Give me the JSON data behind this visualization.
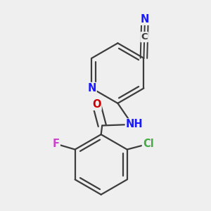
{
  "background_color": "#efefef",
  "atom_colors": {
    "C": "#3d3d3d",
    "N": "#1a1aff",
    "O": "#cc0000",
    "F": "#cc44cc",
    "Cl": "#44aa44",
    "H": "#3d3d3d"
  },
  "bond_color": "#3d3d3d",
  "bond_width": 1.6,
  "font_size": 10.5
}
